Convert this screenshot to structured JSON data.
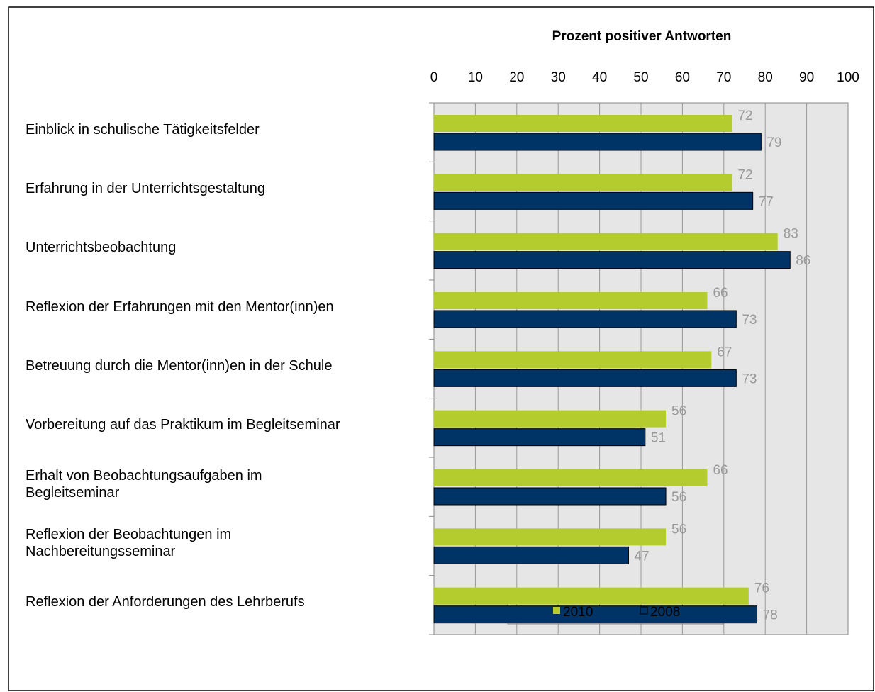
{
  "chart_data": {
    "type": "barh",
    "title": "Prozent positiver Antworten",
    "categories": [
      "Einblick in schulische Tätigkeitsfelder",
      "Erfahrung in der Unterrichtsgestaltung",
      "Unterrichtsbeobachtung",
      "Reflexion der Erfahrungen mit den Mentor(inn)en",
      "Betreuung durch die Mentor(inn)en in der Schule",
      "Vorbereitung auf das Praktikum im Begleitseminar",
      "Erhalt von Beobachtungsaufgaben im\nBegleitseminar",
      "Reflexion der Beobachtungen im\nNachbereitungsseminar",
      "Reflexion der Anforderungen des Lehrberufs"
    ],
    "series": [
      {
        "name": "2010",
        "color": "#b5cc2e",
        "values": [
          72,
          72,
          83,
          66,
          67,
          56,
          66,
          56,
          76
        ]
      },
      {
        "name": "2008",
        "color": "#003366",
        "values": [
          79,
          77,
          86,
          73,
          73,
          51,
          56,
          47,
          78
        ]
      }
    ],
    "xlim": [
      0,
      100
    ],
    "xticks": [
      0,
      10,
      20,
      30,
      40,
      50,
      60,
      70,
      80,
      90,
      100
    ],
    "grid": true,
    "legend": "bottom"
  }
}
